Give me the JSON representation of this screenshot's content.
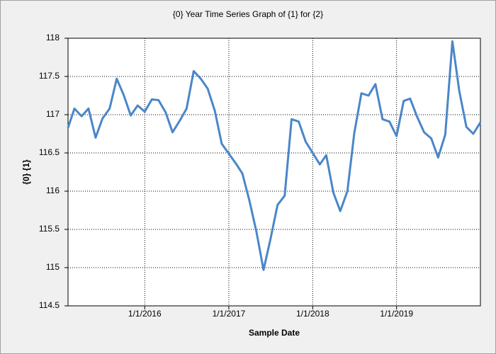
{
  "chart_data": {
    "type": "line",
    "title": "{0} Year Time Series Graph of {1} for {2}",
    "x_label": "Sample Date",
    "y_label": "{0} {1}",
    "x": [
      "2/1/2015",
      "3/1/2015",
      "4/1/2015",
      "5/1/2015",
      "6/1/2015",
      "7/1/2015",
      "8/1/2015",
      "9/1/2015",
      "10/1/2015",
      "11/1/2015",
      "12/1/2015",
      "1/1/2016",
      "2/1/2016",
      "3/1/2016",
      "4/1/2016",
      "5/1/2016",
      "6/1/2016",
      "7/1/2016",
      "8/1/2016",
      "9/1/2016",
      "10/1/2016",
      "11/1/2016",
      "12/1/2016",
      "1/1/2017",
      "2/1/2017",
      "3/1/2017",
      "4/1/2017",
      "5/1/2017",
      "6/1/2017",
      "7/1/2017",
      "8/1/2017",
      "9/1/2017",
      "10/1/2017",
      "11/1/2017",
      "12/1/2017",
      "1/1/2018",
      "2/1/2018",
      "3/1/2018",
      "4/1/2018",
      "5/1/2018",
      "6/1/2018",
      "7/1/2018",
      "8/1/2018",
      "9/1/2018",
      "10/1/2018",
      "11/1/2018",
      "12/1/2018",
      "1/1/2019",
      "2/1/2019",
      "3/1/2019",
      "4/1/2019",
      "5/1/2019",
      "6/1/2019",
      "7/1/2019",
      "8/1/2019",
      "9/1/2019",
      "10/1/2019",
      "11/1/2019",
      "12/1/2019",
      "1/1/2020"
    ],
    "series": [
      {
        "color": "#4a86c8",
        "values": [
          116.83,
          117.08,
          116.98,
          117.08,
          116.7,
          116.95,
          117.08,
          117.47,
          117.26,
          116.99,
          117.12,
          117.04,
          117.2,
          117.19,
          117.03,
          116.77,
          116.92,
          117.08,
          117.57,
          117.47,
          117.34,
          117.05,
          116.62,
          116.49,
          116.36,
          116.23,
          115.87,
          115.47,
          114.97,
          115.37,
          115.82,
          115.94,
          116.94,
          116.91,
          116.65,
          116.5,
          116.35,
          116.47,
          115.98,
          115.74,
          116.0,
          116.76,
          117.28,
          117.25,
          117.4,
          116.94,
          116.91,
          116.72,
          117.18,
          117.21,
          116.97,
          116.77,
          116.69,
          116.44,
          116.74,
          117.96,
          117.31,
          116.84,
          116.75,
          116.9
        ]
      }
    ],
    "xlim": [
      "2/1/2015",
      "1/1/2020"
    ],
    "xticks": [
      "1/1/2016",
      "1/1/2017",
      "1/1/2018",
      "1/1/2019"
    ],
    "ylim": [
      114.5,
      118
    ],
    "yticks": [
      118,
      117.5,
      117,
      116.5,
      116,
      115.5,
      115,
      114.5
    ],
    "grid": true
  }
}
